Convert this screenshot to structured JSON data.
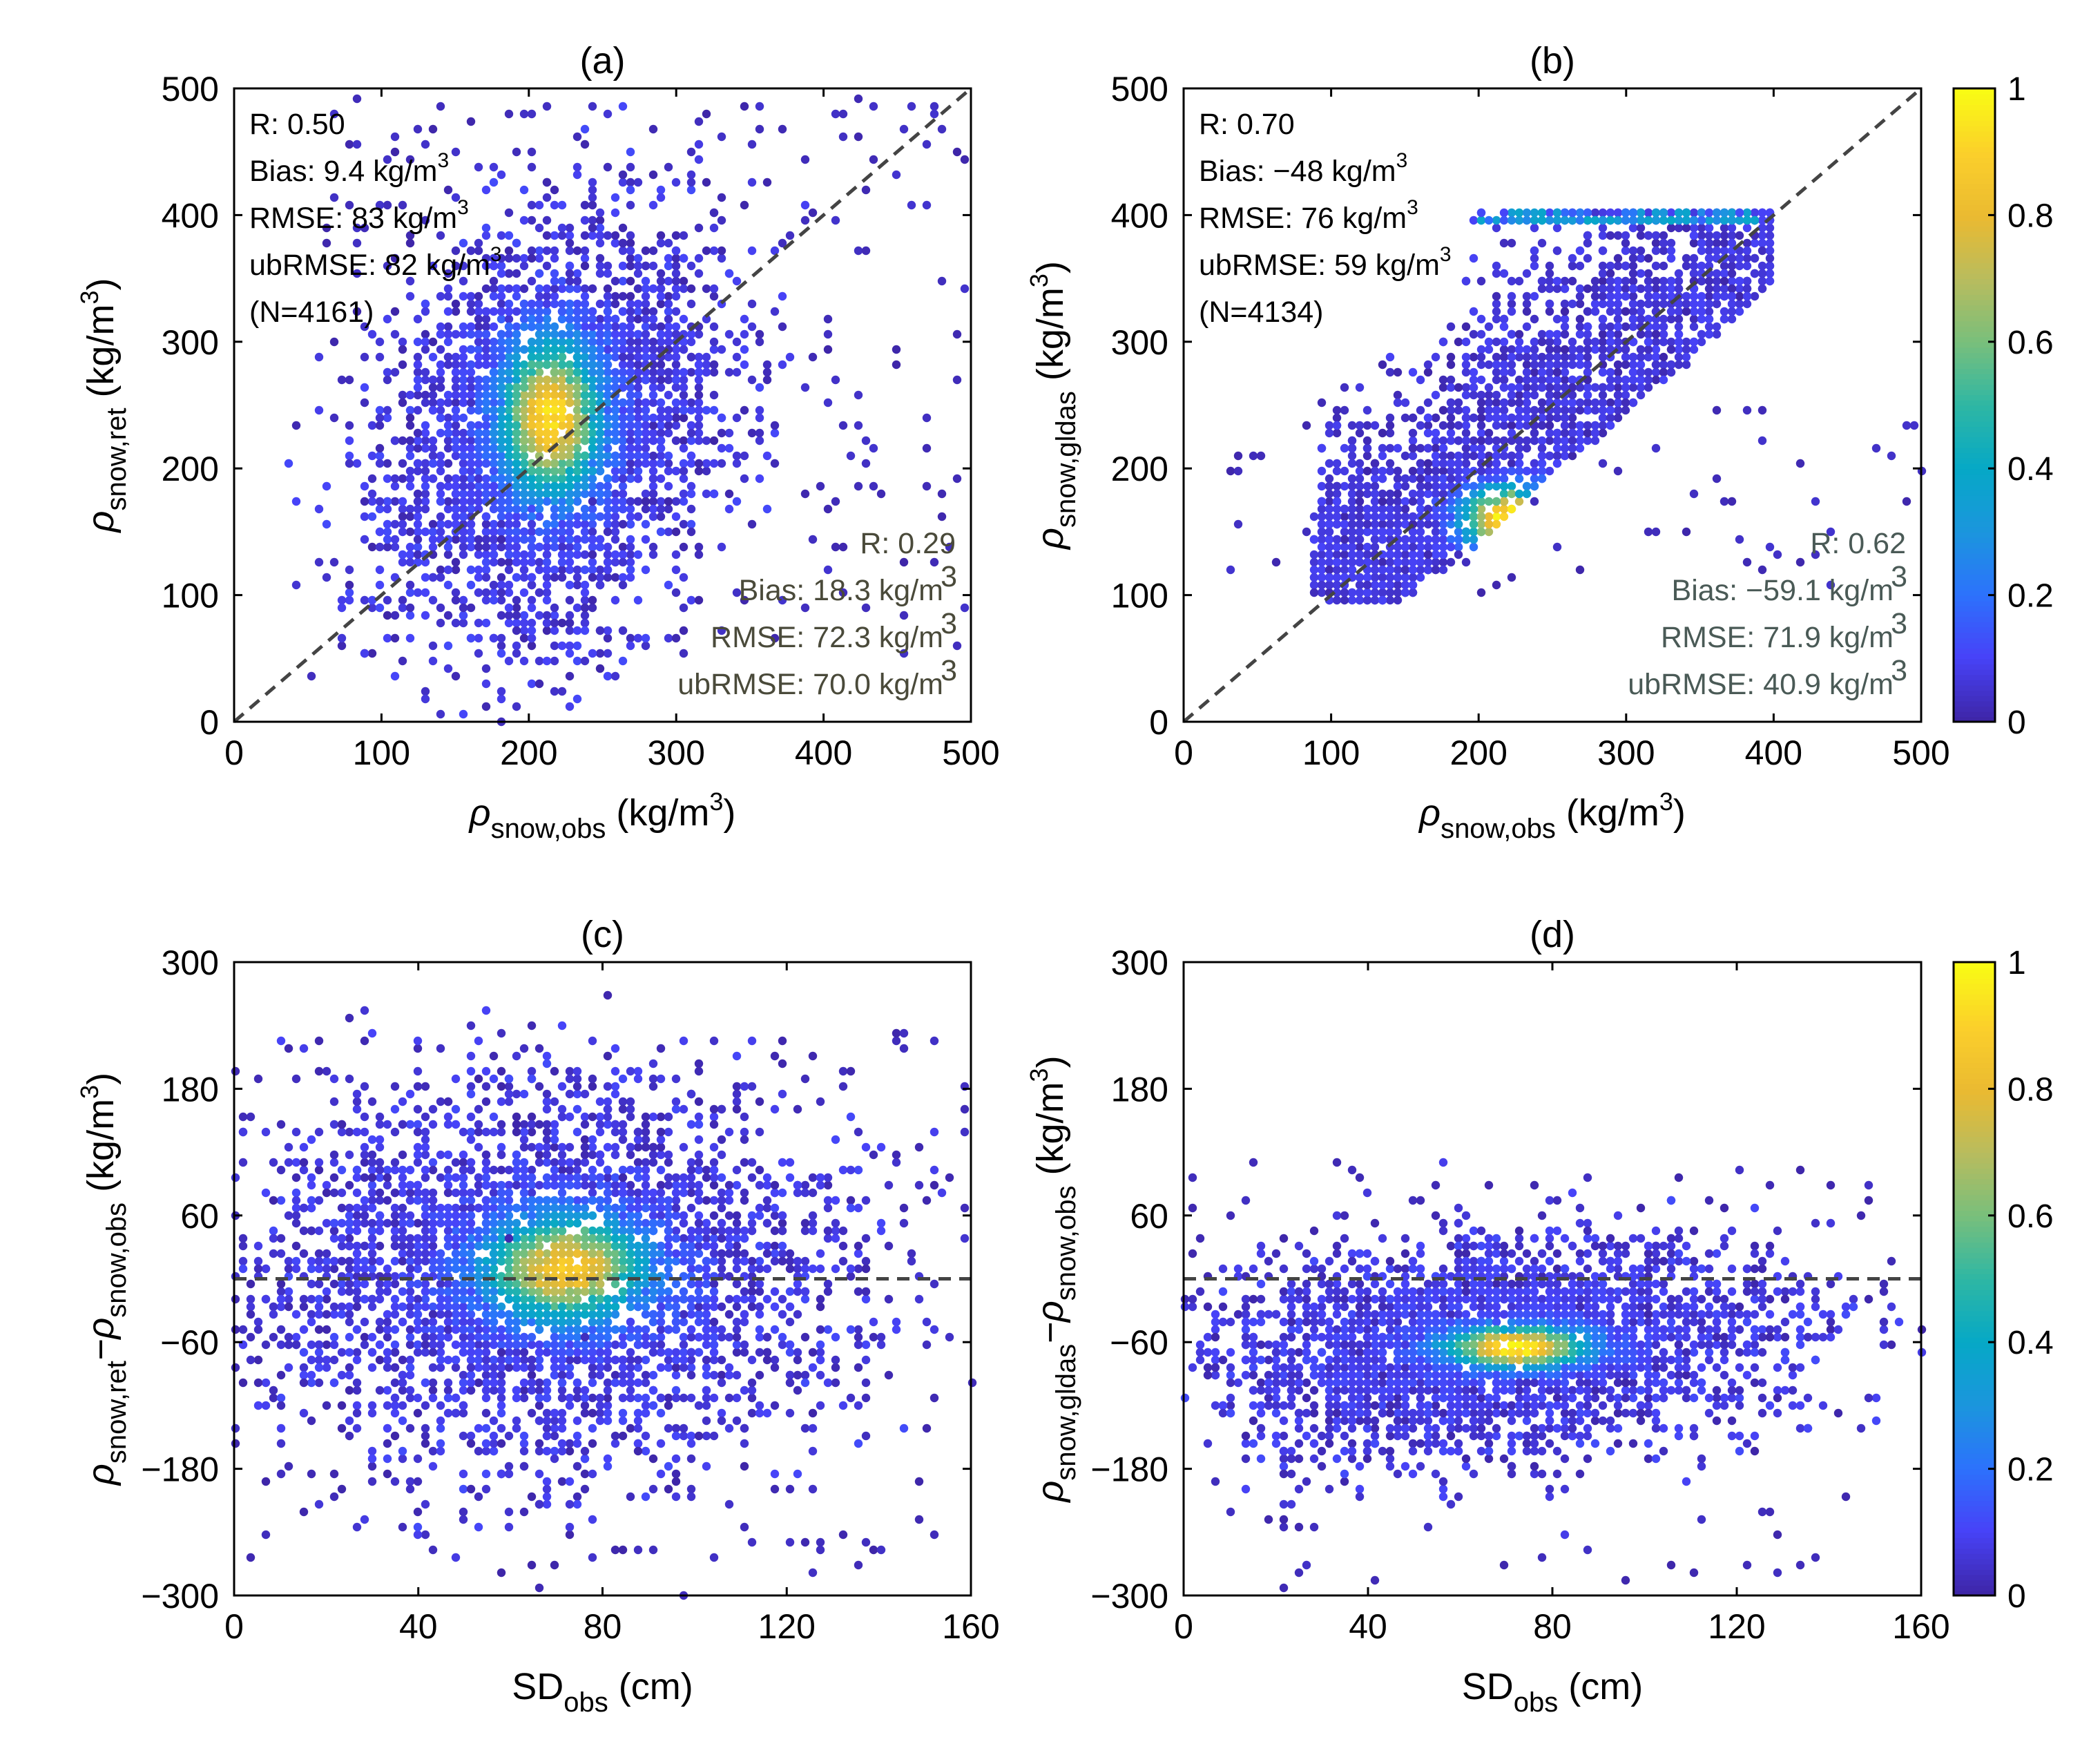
{
  "chart_data": [
    {
      "panel": "(a)",
      "type": "scatter",
      "title": "(a)",
      "xlabel_symbol": "ρ",
      "xlabel_sub": "snow,obs",
      "xlabel_unit": " (kg/m",
      "xlabel_sup": "3",
      "xlabel_close": ")",
      "ylabel_symbol": "ρ",
      "ylabel_sub": "snow,ret",
      "ylabel_unit": " (kg/m",
      "ylabel_sup": "3",
      "ylabel_close": ")",
      "xlim": [
        0,
        500
      ],
      "ylim": [
        0,
        500
      ],
      "xticks": [
        0,
        100,
        200,
        300,
        400,
        500
      ],
      "yticks": [
        0,
        100,
        200,
        300,
        400,
        500
      ],
      "reference_line": "1:1",
      "density_center": [
        215,
        235
      ],
      "spread": [
        52,
        70
      ],
      "stats": [
        "R: 0.50",
        "Bias: 9.4 kg/m",
        "RMSE: 83 kg/m",
        "ubRMSE: 82 kg/m",
        "(N=4161)"
      ],
      "stats2": [
        "R: 0.29",
        "Bias: 18.3 kg/m",
        "RMSE: 72.3 kg/m",
        "ubRMSE: 70.0 kg/m"
      ]
    },
    {
      "panel": "(b)",
      "type": "scatter",
      "title": "(b)",
      "xlabel_symbol": "ρ",
      "xlabel_sub": "snow,obs",
      "xlabel_unit": " (kg/m",
      "xlabel_sup": "3",
      "xlabel_close": ")",
      "ylabel_symbol": "ρ",
      "ylabel_sub": "snow,gldas",
      "ylabel_unit": " (kg/m",
      "ylabel_sup": "3",
      "ylabel_close": ")",
      "xlim": [
        0,
        500
      ],
      "ylim": [
        0,
        500
      ],
      "xticks": [
        0,
        100,
        200,
        300,
        400,
        500
      ],
      "yticks": [
        0,
        100,
        200,
        300,
        400,
        500
      ],
      "reference_line": "1:1",
      "density_center": [
        220,
        160
      ],
      "stats": [
        "R: 0.70",
        "Bias: −48 kg/m",
        "RMSE: 76 kg/m",
        "ubRMSE: 59 kg/m",
        "(N=4134)"
      ],
      "stats2": [
        "R: 0.62",
        "Bias: −59.1 kg/m",
        "RMSE: 71.9 kg/m",
        "ubRMSE: 40.9 kg/m"
      ]
    },
    {
      "panel": "(c)",
      "type": "scatter",
      "title": "(c)",
      "xlabel_symbol": "SD",
      "xlabel_sub": "obs",
      "xlabel_unit": " (cm)",
      "ylabel_symbol": "ρ",
      "ylabel_sub": "snow,ret",
      "ylabel_mid": "−ρ",
      "ylabel_sub2": "snow,obs",
      "ylabel_unit": " (kg/m",
      "ylabel_sup": "3",
      "ylabel_close": ")",
      "xlim": [
        0,
        160
      ],
      "ylim": [
        -300,
        300
      ],
      "xticks": [
        0,
        40,
        80,
        120,
        160
      ],
      "yticks": [
        -300,
        -180,
        -60,
        60,
        180,
        300
      ],
      "reference_line": "y=0",
      "density_center": [
        70,
        10
      ],
      "spread": [
        30,
        85
      ]
    },
    {
      "panel": "(d)",
      "type": "scatter",
      "title": "(d)",
      "xlabel_symbol": "SD",
      "xlabel_sub": "obs",
      "xlabel_unit": " (cm)",
      "ylabel_symbol": "ρ",
      "ylabel_sub": "snow,gldas",
      "ylabel_mid": "−ρ",
      "ylabel_sub2": "snow,obs",
      "ylabel_unit": " (kg/m",
      "ylabel_sup": "3",
      "ylabel_close": ")",
      "xlim": [
        0,
        160
      ],
      "ylim": [
        -300,
        300
      ],
      "xticks": [
        0,
        40,
        80,
        120,
        160
      ],
      "yticks": [
        -300,
        -180,
        -60,
        60,
        180,
        300
      ],
      "reference_line": "y=0",
      "density_center": [
        70,
        -65
      ],
      "spread": [
        28,
        45
      ]
    }
  ],
  "colorbar": {
    "colormap": "parula",
    "range": [
      0,
      1
    ],
    "ticks": [
      0,
      0.2,
      0.4,
      0.6,
      0.8,
      1
    ],
    "tick_labels": [
      "0",
      "0.2",
      "0.4",
      "0.6",
      "0.8",
      "1"
    ],
    "colors": [
      "#3e26a8",
      "#4743f8",
      "#2c72fc",
      "#1b96dd",
      "#06a8c6",
      "#2eb7a4",
      "#78bf7c",
      "#b8bc5e",
      "#eaba31",
      "#fbcf2b",
      "#f9fb14"
    ]
  }
}
